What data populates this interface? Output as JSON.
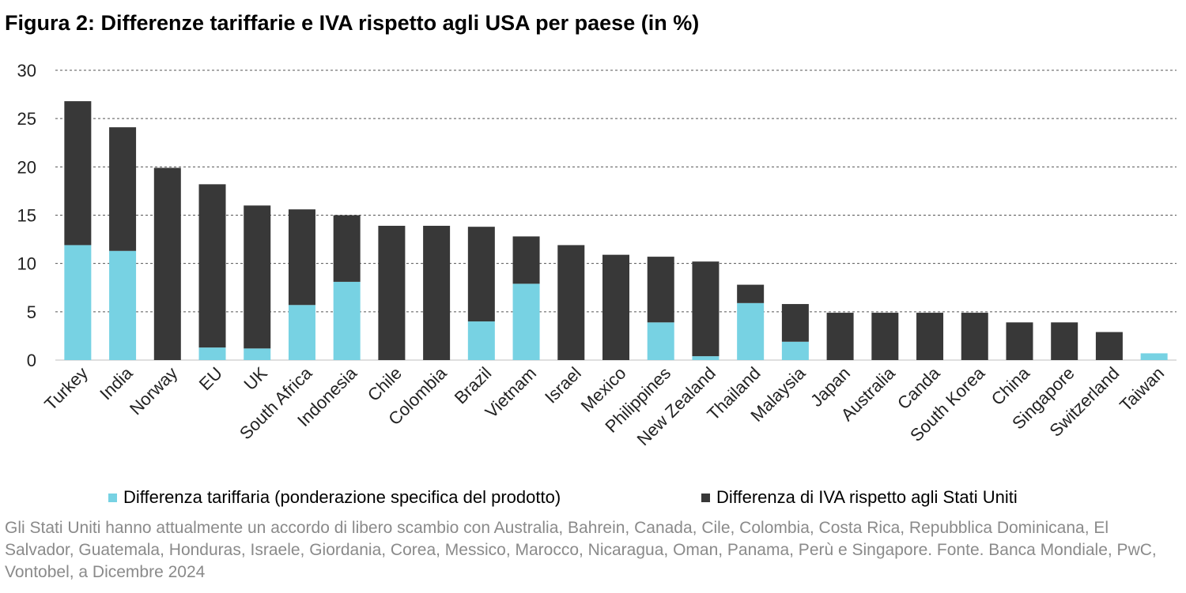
{
  "title": "Figura 2: Differenze tariffarie e IVA rispetto agli USA per paese (in %)",
  "colors": {
    "tariff": "#77d2e3",
    "vat": "#383838",
    "grid": "#555555",
    "axis_text": "#222222"
  },
  "legend": {
    "tariff_label": "Differenza tariffaria (ponderazione specifica del prodotto)",
    "vat_label": "Differenza di IVA rispetto agli Stati Uniti"
  },
  "footnote": "Gli Stati Uniti hanno attualmente un accordo di libero scambio con Australia, Bahrein, Canada, Cile, Colombia, Costa Rica, Repubblica Dominicana, El Salvador, Guatemala, Honduras, Israele, Giordania, Corea, Messico, Marocco, Nicaragua, Oman, Panama, Perù e Singapore. Fonte. Banca Mondiale, PwC, Vontobel, a Dicembre 2024",
  "chart_data": {
    "type": "bar",
    "stacked": true,
    "title": "Figura 2: Differenze tariffarie e IVA rispetto agli USA per paese (in %)",
    "categories": [
      "Turkey",
      "India",
      "Norway",
      "EU",
      "UK",
      "South Africa",
      "Indonesia",
      "Chile",
      "Colombia",
      "Brazil",
      "Vietnam",
      "Israel",
      "Mexico",
      "Philippines",
      "New Zealand",
      "Thailand",
      "Malaysia",
      "Japan",
      "Australia",
      "Canda",
      "South Korea",
      "China",
      "Singapore",
      "Switzerland",
      "Taiwan"
    ],
    "series": [
      {
        "name": "Differenza tariffaria (ponderazione specifica del prodotto)",
        "color": "#77d2e3",
        "values": [
          11.9,
          11.3,
          0,
          1.3,
          1.2,
          5.7,
          8.1,
          0,
          0,
          4.0,
          7.9,
          0,
          0,
          3.9,
          0.4,
          5.9,
          1.9,
          0,
          0,
          0,
          0,
          0,
          0,
          0,
          0.7
        ]
      },
      {
        "name": "Differenza di IVA rispetto agli Stati Uniti",
        "color": "#383838",
        "values": [
          14.9,
          12.8,
          19.9,
          16.9,
          14.8,
          9.9,
          6.9,
          13.9,
          13.9,
          9.8,
          4.9,
          11.9,
          10.9,
          6.8,
          9.8,
          1.9,
          3.9,
          4.9,
          4.9,
          4.9,
          4.9,
          3.9,
          3.9,
          2.9,
          0
        ]
      }
    ],
    "yticks": [
      0,
      5,
      10,
      15,
      20,
      25,
      30
    ],
    "ylim": [
      0,
      30
    ],
    "grid": true,
    "grid_style": "dashed horizontal",
    "legend_position": "bottom",
    "xlabel": "",
    "ylabel": ""
  }
}
